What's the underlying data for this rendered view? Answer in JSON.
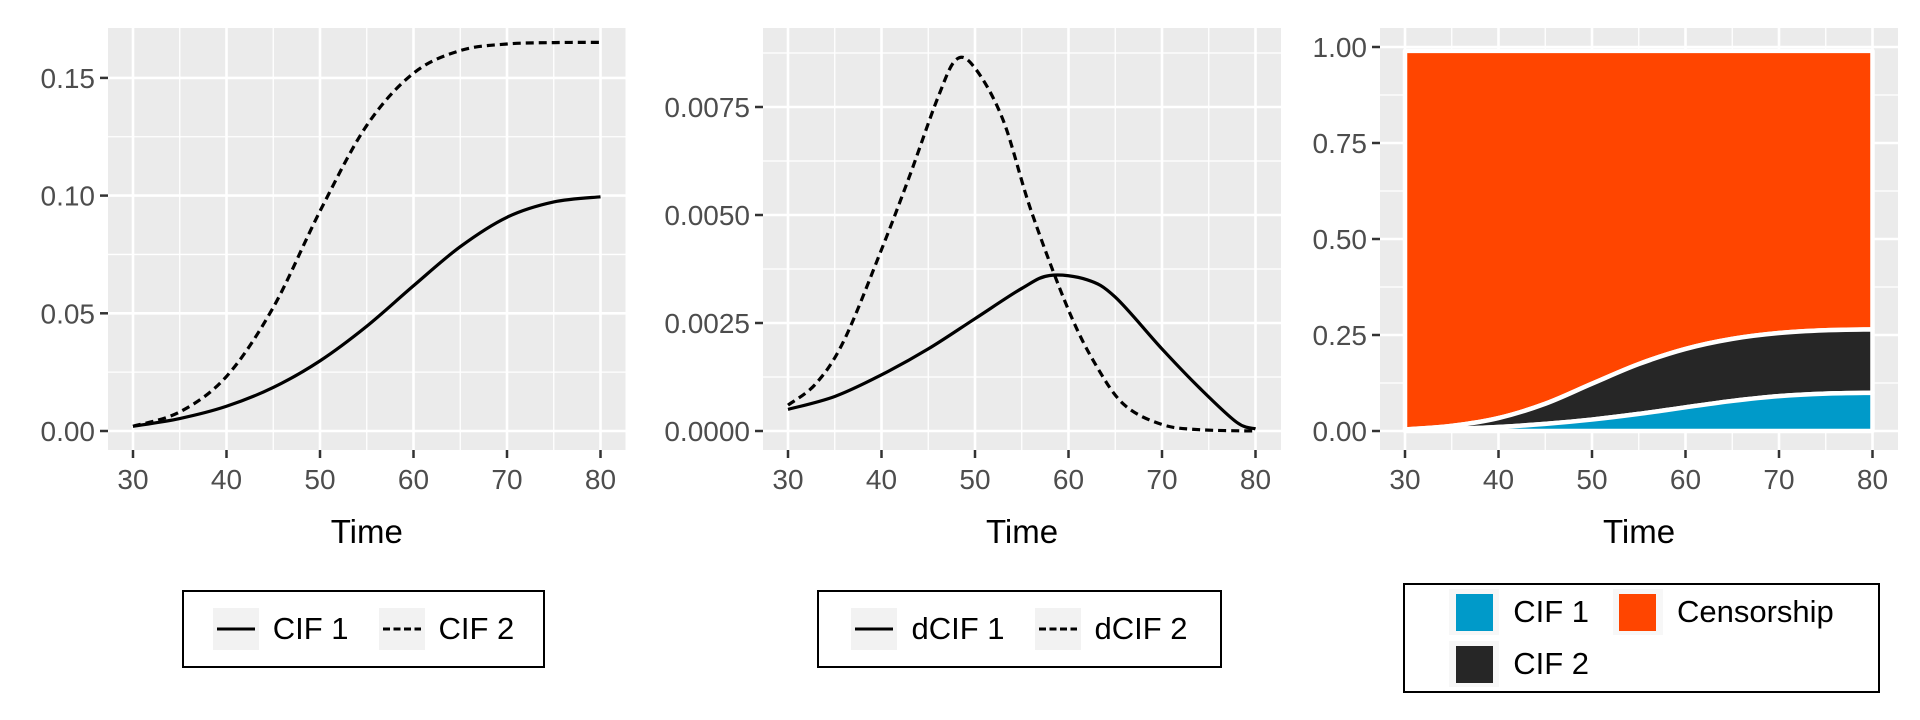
{
  "style": {
    "background": "#FFFFFF",
    "panel_bg": "#EBEBEB",
    "grid_color": "#FFFFFF",
    "tick_mark_color": "#333333",
    "tick_label_color": "#4D4D4D",
    "axis_title_color": "#000000",
    "legend_border": "#000000",
    "legend_bg": "#FFFFFF",
    "legend_key_bg": "#F2F2F2",
    "area_outline": "#FFFFFF",
    "line_color": "#000000"
  },
  "chart_data": [
    {
      "type": "line",
      "title": "",
      "xlabel": "Time",
      "ylabel": "",
      "grid": true,
      "legend_position": "bottom",
      "xlim": [
        27.3,
        82.7
      ],
      "ylim": [
        -0.0071,
        0.1712
      ],
      "x_ticks": [
        30,
        40,
        50,
        60,
        70,
        80
      ],
      "x_tick_labels": [
        "30",
        "40",
        "50",
        "60",
        "70",
        "80"
      ],
      "y_tick_values": [
        0,
        0.05,
        0.1,
        0.15
      ],
      "y_tick_labels": [
        "0.00",
        "0.05",
        "0.10",
        "0.15"
      ],
      "series": [
        {
          "name": "CIF 1",
          "linetype": "solid",
          "color": "#000000",
          "x": [
            30,
            35,
            40,
            45,
            50,
            55,
            60,
            65,
            70,
            75,
            80
          ],
          "y": [
            0.002,
            0.0053,
            0.0105,
            0.0185,
            0.0298,
            0.0445,
            0.0617,
            0.0783,
            0.0908,
            0.0973,
            0.0995
          ]
        },
        {
          "name": "CIF 2",
          "linetype": "dashed",
          "color": "#000000",
          "x": [
            30,
            35,
            40,
            45,
            50,
            55,
            60,
            65,
            70,
            75,
            80
          ],
          "y": [
            0.002,
            0.0081,
            0.0232,
            0.0525,
            0.0934,
            0.1298,
            0.152,
            0.1616,
            0.1644,
            0.165,
            0.1651
          ]
        }
      ]
    },
    {
      "type": "line",
      "title": "",
      "xlabel": "Time",
      "ylabel": "",
      "grid": true,
      "legend_position": "bottom",
      "xlim": [
        27.3,
        82.7
      ],
      "ylim": [
        -0.00023,
        0.00933
      ],
      "x_ticks": [
        30,
        40,
        50,
        60,
        70,
        80
      ],
      "x_tick_labels": [
        "30",
        "40",
        "50",
        "60",
        "70",
        "80"
      ],
      "y_tick_values": [
        0,
        0.0025,
        0.005,
        0.0075
      ],
      "y_tick_labels": [
        "0.0000",
        "0.0025",
        "0.0050",
        "0.0075"
      ],
      "series": [
        {
          "name": "dCIF 1",
          "linetype": "solid",
          "color": "#000000",
          "x": [
            30,
            35,
            40,
            45,
            50,
            55,
            58,
            62,
            65,
            70,
            74,
            78,
            80
          ],
          "y": [
            0.0005,
            0.0008,
            0.0013,
            0.0019,
            0.0026,
            0.0033,
            0.0036,
            0.0035,
            0.0031,
            0.0019,
            0.001,
            0.0002,
            5e-05
          ]
        },
        {
          "name": "dCIF 2",
          "linetype": "dashed",
          "color": "#000000",
          "x": [
            30,
            33,
            36,
            40,
            43,
            46,
            48,
            50,
            53,
            56,
            60,
            63,
            66,
            70,
            74,
            80
          ],
          "y": [
            0.0006,
            0.0011,
            0.0021,
            0.0042,
            0.0059,
            0.0077,
            0.0086,
            0.0084,
            0.0072,
            0.0051,
            0.0028,
            0.0015,
            0.0006,
            0.00015,
            3e-05,
            0
          ]
        }
      ]
    },
    {
      "type": "area",
      "stacked": true,
      "title": "",
      "xlabel": "Time",
      "ylabel": "",
      "grid": true,
      "legend_position": "bottom",
      "stack_total": 0.99,
      "xlim": [
        27.3,
        82.7
      ],
      "ylim": [
        -0.05,
        1.05
      ],
      "x_ticks": [
        30,
        40,
        50,
        60,
        70,
        80
      ],
      "x_tick_labels": [
        "30",
        "40",
        "50",
        "60",
        "70",
        "80"
      ],
      "y_tick_values": [
        0,
        0.25,
        0.5,
        0.75,
        1
      ],
      "y_tick_labels": [
        "0.00",
        "0.25",
        "0.50",
        "0.75",
        "1.00"
      ],
      "series": [
        {
          "name": "CIF 1",
          "color": "#009AC9",
          "x": [
            30,
            35,
            40,
            45,
            50,
            55,
            60,
            65,
            70,
            75,
            80
          ],
          "y": [
            0.002,
            0.0053,
            0.0105,
            0.0185,
            0.0298,
            0.0445,
            0.0617,
            0.0783,
            0.0908,
            0.0973,
            0.0995
          ]
        },
        {
          "name": "CIF 2",
          "color": "#262626",
          "x": [
            30,
            35,
            40,
            45,
            50,
            55,
            60,
            65,
            70,
            75,
            80
          ],
          "y": [
            0.002,
            0.0081,
            0.0232,
            0.0525,
            0.0934,
            0.1298,
            0.152,
            0.1616,
            0.1644,
            0.165,
            0.1651
          ]
        },
        {
          "name": "Censorship",
          "color": "#FF4500",
          "fills_to_top": true
        }
      ]
    }
  ]
}
